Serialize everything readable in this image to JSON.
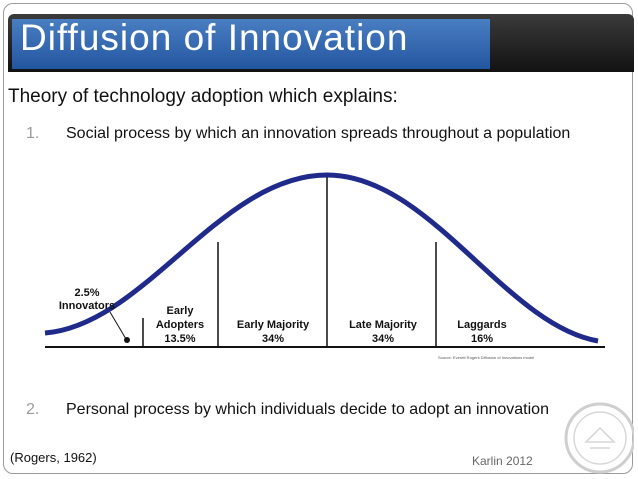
{
  "slide": {
    "title": "Diffusion of Innovation",
    "intro": "Theory of technology adoption which explains:",
    "items": [
      {
        "number": "1.",
        "text": "Social process by which an innovation spreads throughout a population"
      },
      {
        "number": "2.",
        "text": "Personal process by which individuals decide to adopt an innovation"
      }
    ],
    "citation": "(Rogers, 1962)",
    "credit": "Karlin 2012"
  },
  "figure": {
    "segments": [
      {
        "name": "Innovators",
        "share": "2.5%"
      },
      {
        "name": "Early Adopters",
        "share": "13.5%"
      },
      {
        "name": "Early Majority",
        "share": "34%"
      },
      {
        "name": "Late Majority",
        "share": "34%"
      },
      {
        "name": "Laggards",
        "share": "16%"
      }
    ],
    "source": "Source: Everett Rogers Diffusion of Innovations model",
    "curve_color": "#1f2a8a",
    "title_bg_color": "#2f64ad"
  }
}
